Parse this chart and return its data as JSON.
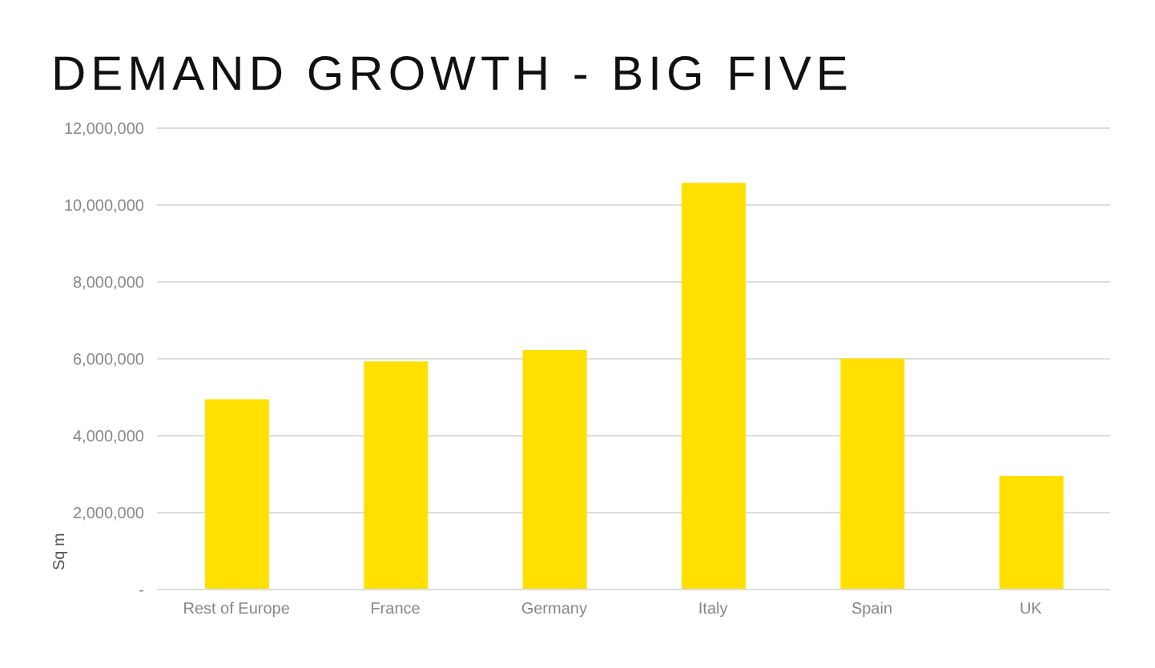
{
  "chart_data": {
    "type": "bar",
    "title": "DEMAND GROWTH - BIG FIVE",
    "ylabel": "Sq m",
    "categories": [
      "Rest of Europe",
      "France",
      "Germany",
      "Italy",
      "Spain",
      "UK"
    ],
    "values": [
      4950000,
      5930000,
      6230000,
      10580000,
      6010000,
      2960000
    ],
    "color": "#ffe000",
    "ylim": [
      0,
      12000000
    ],
    "yticks": [
      {
        "value": 0,
        "label": "-"
      },
      {
        "value": 2000000,
        "label": "2,000,000"
      },
      {
        "value": 4000000,
        "label": "4,000,000"
      },
      {
        "value": 6000000,
        "label": "6,000,000"
      },
      {
        "value": 8000000,
        "label": "8,000,000"
      },
      {
        "value": 10000000,
        "label": "10,000,000"
      },
      {
        "value": 12000000,
        "label": "12,000,000"
      }
    ],
    "grid": "y"
  }
}
